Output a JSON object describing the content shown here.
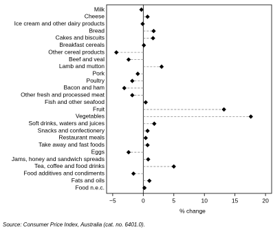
{
  "chart_data": {
    "type": "dot",
    "categories": [
      "Milk",
      "Cheese",
      "Ice cream and other dairy products",
      "Bread",
      "Cakes and biscuits",
      "Breakfast cereals",
      "Other cereal products",
      "Beef and veal",
      "Lamb and mutton",
      "Pork",
      "Poultry",
      "Bacon and ham",
      "Other fresh and processed meat",
      "Fish and other seafood",
      "Fruit",
      "Vegetables",
      "Soft drinks, waters and juices",
      "Snacks and confectionery",
      "Restaurant meals",
      "Take away and fast foods",
      "Eggs",
      "Jams, honey and sandwich spreads",
      "Tea, coffee and food drinks",
      "Food additives and condiments",
      "Fats and oils",
      "Food n.e.c."
    ],
    "values": [
      -0.3,
      0.7,
      -0.1,
      1.7,
      1.6,
      0.1,
      -4.4,
      -2.4,
      3.0,
      -0.9,
      -1.8,
      -3.1,
      -1.8,
      0.4,
      13.2,
      17.6,
      1.8,
      0.7,
      0.4,
      0.7,
      -2.4,
      0.8,
      5.0,
      -1.6,
      1.0,
      0.2
    ],
    "color": "#000000",
    "x_label": "% change",
    "xlim": [
      -6,
      21
    ],
    "xticks": [
      {
        "value": -5,
        "label": "−5"
      },
      0,
      5,
      10,
      15,
      20
    ],
    "source": "Source: Consumer Price Index, Australia (cat. no. 6401.0)."
  }
}
